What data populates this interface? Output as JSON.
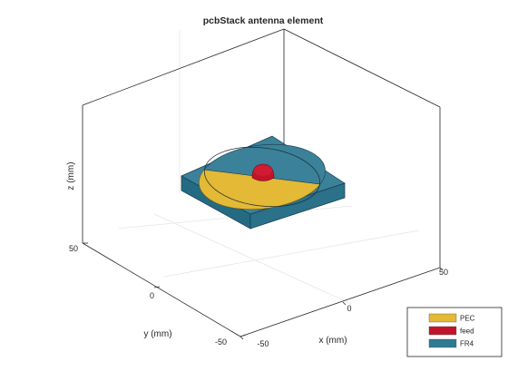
{
  "figure": {
    "title": "pcbStack antenna element",
    "xlabel": "x (mm)",
    "ylabel": "y (mm)",
    "zlabel": "z (mm)",
    "x_ticks": [
      "50",
      "0",
      "-50"
    ],
    "y_ticks": [
      "50",
      "0",
      "-50"
    ]
  },
  "legend": {
    "items": [
      {
        "label": "PEC",
        "color": "#e3b935"
      },
      {
        "label": "feed",
        "color": "#c0142a"
      },
      {
        "label": "FR4",
        "color": "#2f7a93"
      }
    ]
  },
  "colors": {
    "pec": "#e3b935",
    "feed": "#c0142a",
    "fr4_top": "#3b8199",
    "fr4_side": "#246a83",
    "box": "#262626",
    "grid": "#e6e6e6"
  },
  "icons": {
    "legend_patch": "filled-rectangle"
  }
}
